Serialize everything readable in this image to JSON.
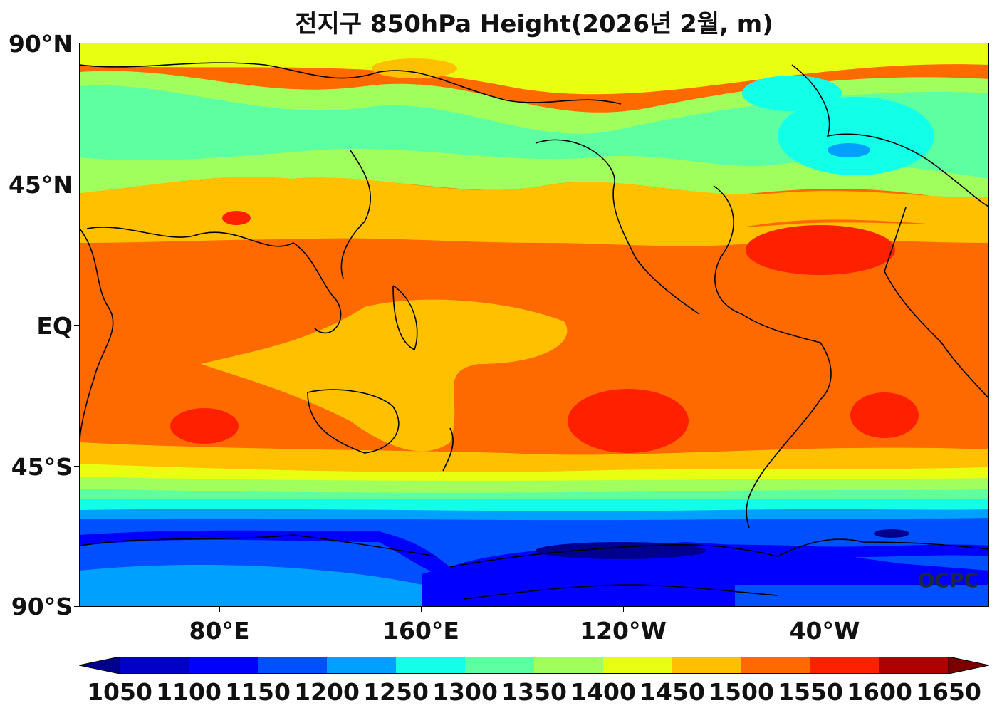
{
  "title": "전지구 850hPa Height(2026년 2월, m)",
  "lat_labels": [
    "90°N",
    "45°N",
    "EQ",
    "45°S",
    "90°S"
  ],
  "lon_labels": [
    "80°E",
    "160°E",
    "120°W",
    "40°W"
  ],
  "watermark": "OCPC",
  "colorbar": {
    "levels": [
      "1050",
      "1100",
      "1150",
      "1200",
      "1250",
      "1300",
      "1350",
      "1400",
      "1450",
      "1500",
      "1550",
      "1600",
      "1650"
    ],
    "colors": [
      "#00008f",
      "#0000c8",
      "#0000ff",
      "#0050ff",
      "#00a0ff",
      "#12ffe8",
      "#5dffa0",
      "#a0ff5d",
      "#e8ff12",
      "#ffc000",
      "#ff6a00",
      "#ff2000",
      "#b00000",
      "#7a0000"
    ]
  }
}
